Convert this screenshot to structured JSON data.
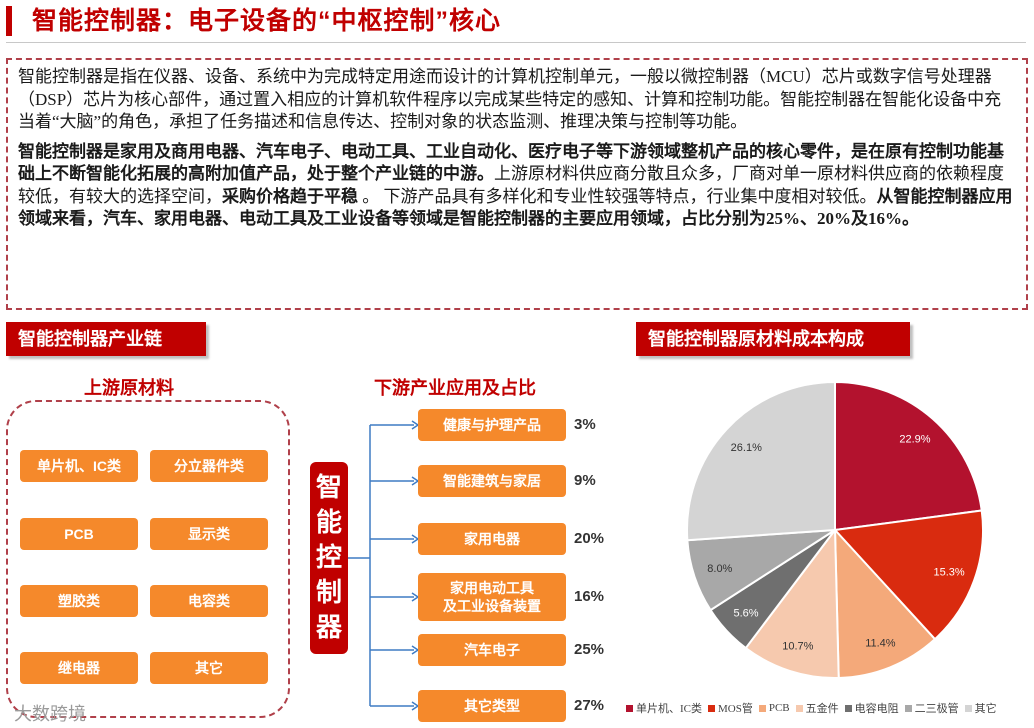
{
  "header": {
    "title": "智能控制器：电子设备的“中枢控制”核心"
  },
  "intro": {
    "p1": "智能控制器是指在仪器、设备、系统中为完成特定用途而设计的计算机控制单元，一般以微控制器（MCU）芯片或数字信号处理器（DSP）芯片为核心部件，通过置入相应的计算机软件程序以完成某些特定的感知、计算和控制功能。智能控制器在智能化设备中充当着“大脑”的角色，承担了任务描述和信息传达、控制对象的状态监测、推理决策与控制等功能。",
    "p2_bold1": "智能控制器是家用及商用电器、汽车电子、电动工具、工业自动化、医疗电子等下游领域整机产品的核心零件，是在原有控制功能基础上不断智能化拓展的高附加值产品，处于整个产业链的中游。",
    "p2_normal1": "上游原材料供应商分散且众多，厂商对单一原材料供应商的依赖程度较低，有较大的选择空间，",
    "p2_bold2": "采购价格趋于平稳",
    "p2_normal2": " 。 下游产品具有多样化和专业性较强等特点，行业集中度相对较低。",
    "p2_bold3": "从智能控制器应用领域来看，汽车、家用电器、电动工具及工业设备等领域是智能控制器的主要应用领域，占比分别为25%、20%及16%。"
  },
  "chain": {
    "section_label": "智能控制器产业链",
    "upstream_title": "上游原材料",
    "downstream_title": "下游产业应用及占比",
    "core_label": [
      "智",
      "能",
      "控",
      "制",
      "器"
    ],
    "upstream_items": [
      "单片机、IC类",
      "分立器件类",
      "PCB",
      "显示类",
      "塑胶类",
      "电容类",
      "继电器",
      "其它"
    ],
    "downstream_items": [
      {
        "label": "健康与护理产品",
        "pct": "3%"
      },
      {
        "label": "智能建筑与家居",
        "pct": "9%"
      },
      {
        "label": "家用电器",
        "pct": "20%"
      },
      {
        "label": "家用电动工具\n及工业设备装置",
        "pct": "16%"
      },
      {
        "label": "汽车电子",
        "pct": "25%"
      },
      {
        "label": "其它类型",
        "pct": "27%"
      }
    ]
  },
  "pie_section": {
    "section_label": "智能控制器原材料成本构成"
  },
  "chart_data": {
    "type": "pie",
    "title": "智能控制器原材料成本构成",
    "categories": [
      "单片机、IC类",
      "MOS管",
      "PCB",
      "五金件",
      "电容电阻",
      "二三极管",
      "其它"
    ],
    "values": [
      22.9,
      15.3,
      11.4,
      10.7,
      5.6,
      8.0,
      26.1
    ],
    "value_labels": [
      "22.9%",
      "15.3%",
      "11.4%",
      "10.7%",
      "5.6%",
      "8.0%",
      "26.1%"
    ],
    "colors": [
      "#b3122e",
      "#d92b0f",
      "#f4a97a",
      "#f6c9ae",
      "#6f6f6f",
      "#a8a8a8",
      "#d4d4d4"
    ],
    "label_colors": [
      "#ffffff",
      "#ffffff",
      "#333333",
      "#333333",
      "#ffffff",
      "#333333",
      "#333333"
    ],
    "legend_placement": "bottom"
  },
  "footer": {
    "logo_text": "大数跨境"
  }
}
